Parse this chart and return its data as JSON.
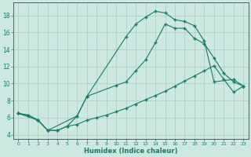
{
  "xlabel": "Humidex (Indice chaleur)",
  "bg_color": "#cce8e0",
  "grid_color": "#aaccbb",
  "line_color": "#1a7a6a",
  "xlim": [
    -0.5,
    23.5
  ],
  "ylim": [
    3.5,
    19.5
  ],
  "xticks": [
    0,
    1,
    2,
    3,
    4,
    5,
    6,
    7,
    8,
    9,
    10,
    11,
    12,
    13,
    14,
    15,
    16,
    17,
    18,
    19,
    20,
    21,
    22,
    23
  ],
  "yticks": [
    4,
    6,
    8,
    10,
    12,
    14,
    16,
    18
  ],
  "line1_x": [
    0,
    1,
    2,
    3,
    4,
    5,
    6,
    7,
    11,
    12,
    13,
    14,
    15,
    16,
    17,
    18,
    19,
    20,
    22,
    23
  ],
  "line1_y": [
    6.5,
    6.3,
    5.7,
    4.5,
    4.5,
    5.0,
    6.2,
    8.5,
    15.5,
    17.0,
    17.8,
    18.5,
    18.3,
    17.5,
    17.3,
    16.8,
    15.0,
    10.2,
    10.5,
    9.7
  ],
  "line2_x": [
    0,
    2,
    3,
    6,
    7,
    10,
    11,
    12,
    13,
    14,
    15,
    16,
    17,
    18,
    19,
    20,
    21,
    22,
    23
  ],
  "line2_y": [
    6.5,
    5.7,
    4.5,
    6.2,
    8.5,
    9.8,
    10.2,
    11.5,
    12.8,
    14.8,
    17.0,
    16.5,
    16.5,
    15.3,
    14.7,
    13.0,
    11.2,
    10.2,
    9.7
  ],
  "line3_x": [
    0,
    1,
    2,
    3,
    4,
    5,
    6,
    7,
    8,
    9,
    10,
    11,
    12,
    13,
    14,
    15,
    16,
    17,
    18,
    19,
    20,
    21,
    22,
    23
  ],
  "line3_y": [
    6.5,
    6.3,
    5.7,
    4.5,
    4.5,
    5.0,
    5.2,
    5.7,
    6.0,
    6.3,
    6.7,
    7.1,
    7.6,
    8.1,
    8.6,
    9.1,
    9.7,
    10.3,
    10.9,
    11.5,
    12.1,
    10.5,
    9.0,
    9.7
  ]
}
